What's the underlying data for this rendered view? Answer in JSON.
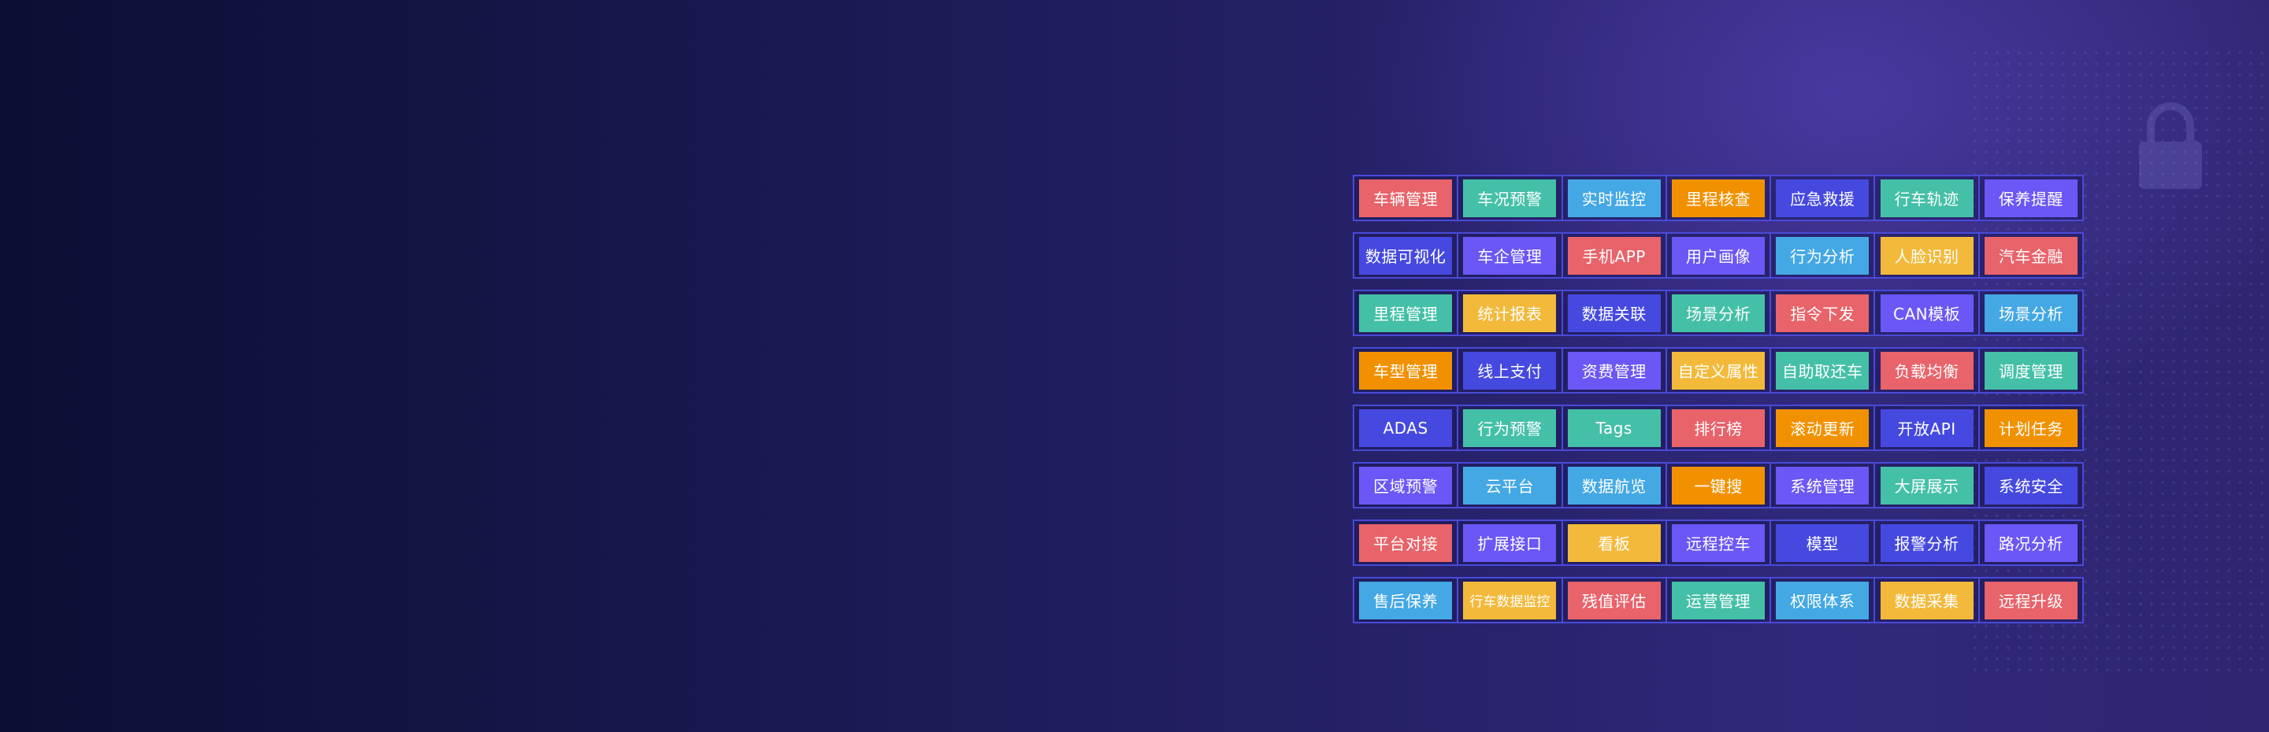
{
  "colors": {
    "red": "#e8636a",
    "teal": "#45c0a8",
    "blue": "#44a8e5",
    "orange": "#f29100",
    "indigo": "#4549e0",
    "purple": "#6b57f5",
    "yellow": "#f3b93a"
  },
  "feature_grid": [
    [
      {
        "label": "车辆管理",
        "color": "red"
      },
      {
        "label": "车况预警",
        "color": "teal"
      },
      {
        "label": "实时监控",
        "color": "blue"
      },
      {
        "label": "里程核查",
        "color": "orange"
      },
      {
        "label": "应急救援",
        "color": "indigo"
      },
      {
        "label": "行车轨迹",
        "color": "teal"
      },
      {
        "label": "保养提醒",
        "color": "purple"
      }
    ],
    [
      {
        "label": "数据可视化",
        "color": "indigo"
      },
      {
        "label": "车企管理",
        "color": "purple"
      },
      {
        "label": "手机APP",
        "color": "red"
      },
      {
        "label": "用户画像",
        "color": "purple"
      },
      {
        "label": "行为分析",
        "color": "blue"
      },
      {
        "label": "人脸识别",
        "color": "yellow"
      },
      {
        "label": "汽车金融",
        "color": "red"
      }
    ],
    [
      {
        "label": "里程管理",
        "color": "teal"
      },
      {
        "label": "统计报表",
        "color": "yellow"
      },
      {
        "label": "数据关联",
        "color": "indigo"
      },
      {
        "label": "场景分析",
        "color": "teal"
      },
      {
        "label": "指令下发",
        "color": "red"
      },
      {
        "label": "CAN模板",
        "color": "purple"
      },
      {
        "label": "场景分析",
        "color": "blue"
      }
    ],
    [
      {
        "label": "车型管理",
        "color": "orange"
      },
      {
        "label": "线上支付",
        "color": "indigo"
      },
      {
        "label": "资费管理",
        "color": "purple"
      },
      {
        "label": "自定义属性",
        "color": "yellow"
      },
      {
        "label": "自助取还车",
        "color": "teal"
      },
      {
        "label": "负载均衡",
        "color": "red"
      },
      {
        "label": "调度管理",
        "color": "teal"
      }
    ],
    [
      {
        "label": "ADAS",
        "color": "indigo"
      },
      {
        "label": "行为预警",
        "color": "teal"
      },
      {
        "label": "Tags",
        "color": "teal"
      },
      {
        "label": "排行榜",
        "color": "red"
      },
      {
        "label": "滚动更新",
        "color": "orange"
      },
      {
        "label": "开放API",
        "color": "indigo"
      },
      {
        "label": "计划任务",
        "color": "orange"
      }
    ],
    [
      {
        "label": "区域预警",
        "color": "purple"
      },
      {
        "label": "云平台",
        "color": "blue"
      },
      {
        "label": "数据航览",
        "color": "blue"
      },
      {
        "label": "一键搜",
        "color": "orange"
      },
      {
        "label": "系统管理",
        "color": "purple"
      },
      {
        "label": "大屏展示",
        "color": "teal"
      },
      {
        "label": "系统安全",
        "color": "indigo"
      }
    ],
    [
      {
        "label": "平台对接",
        "color": "red"
      },
      {
        "label": "扩展接口",
        "color": "purple"
      },
      {
        "label": "看板",
        "color": "yellow"
      },
      {
        "label": "远程控车",
        "color": "purple"
      },
      {
        "label": "模型",
        "color": "indigo"
      },
      {
        "label": "报警分析",
        "color": "indigo"
      },
      {
        "label": "路况分析",
        "color": "purple"
      }
    ],
    [
      {
        "label": "售后保养",
        "color": "blue"
      },
      {
        "label": "行车数据监控",
        "color": "yellow"
      },
      {
        "label": "残值评估",
        "color": "red"
      },
      {
        "label": "运营管理",
        "color": "teal"
      },
      {
        "label": "权限体系",
        "color": "blue"
      },
      {
        "label": "数据采集",
        "color": "yellow"
      },
      {
        "label": "远程升级",
        "color": "red"
      }
    ]
  ]
}
